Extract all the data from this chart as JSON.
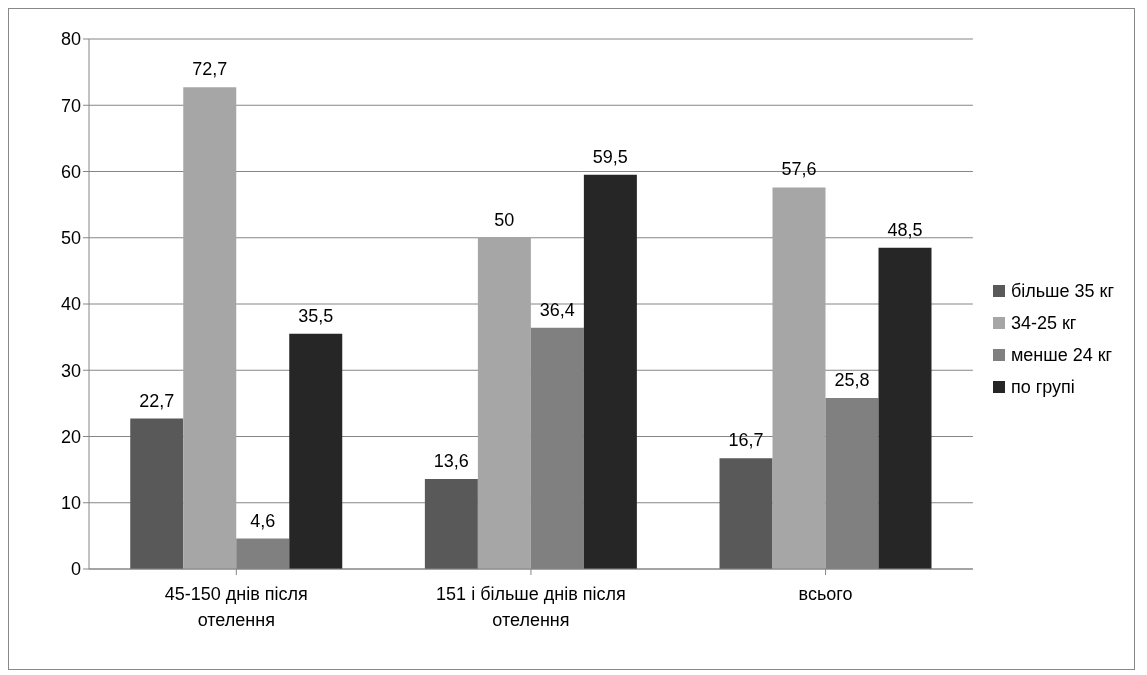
{
  "chart_data": {
    "type": "bar",
    "categories": [
      "45-150 днів після отелення",
      "151 і більше днів після отелення",
      "всього"
    ],
    "series": [
      {
        "name": "більше 35 кг",
        "color": "#595959",
        "values": [
          22.7,
          13.6,
          16.7
        ],
        "value_labels": [
          "22,7",
          "13,6",
          "16,7"
        ]
      },
      {
        "name": "34-25 кг",
        "color": "#a6a6a6",
        "values": [
          72.7,
          50,
          57.6
        ],
        "value_labels": [
          "72,7",
          "50",
          "57,6"
        ]
      },
      {
        "name": "менше 24 кг",
        "color": "#808080",
        "values": [
          4.6,
          36.4,
          25.8
        ],
        "value_labels": [
          "4,6",
          "36,4",
          "25,8"
        ]
      },
      {
        "name": "по групі",
        "color": "#262626",
        "values": [
          35.5,
          59.5,
          48.5
        ],
        "value_labels": [
          "35,5",
          "59,5",
          "48,5"
        ]
      }
    ],
    "ylim": [
      0,
      80
    ],
    "yticks": [
      0,
      10,
      20,
      30,
      40,
      50,
      60,
      70,
      80
    ],
    "grid": "y",
    "legend": "right"
  }
}
